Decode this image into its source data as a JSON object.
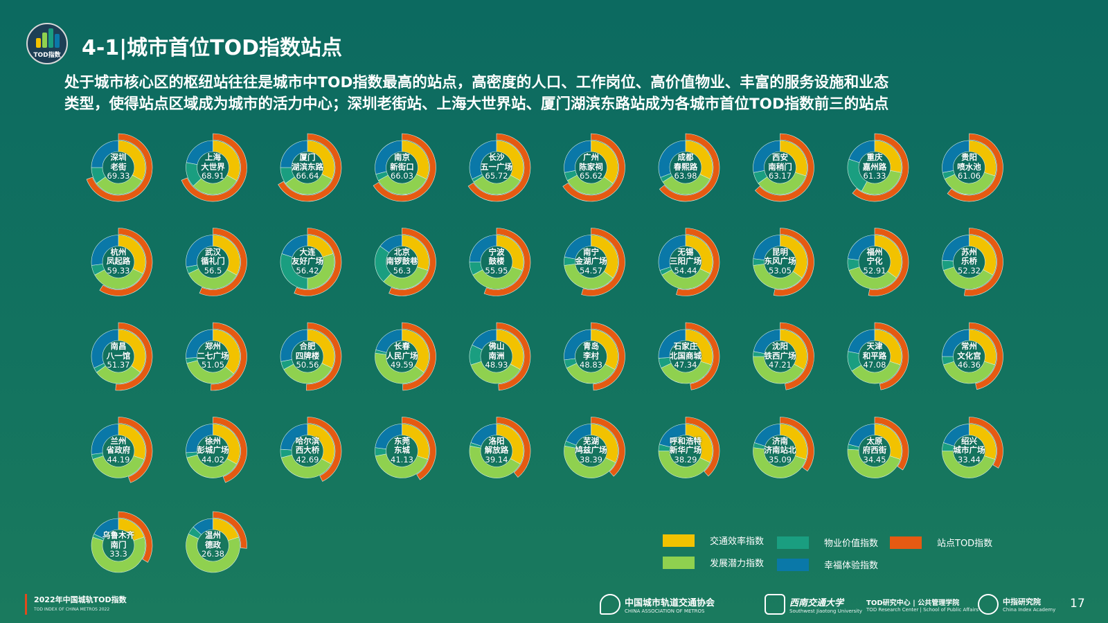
{
  "header": {
    "title": "4-1|城市首位TOD指数站点",
    "logo_text": "TOD指数",
    "subtitle_lines": [
      "处于城市核心区的枢纽站往往是城市中TOD指数最高的站点，高密度的人口、工作岗位、高价值物业、丰富的服务设施和业态",
      "类型，使得站点区域成为城市的活力中心；深圳老街站、上海大世界站、厦门湖滨东路站成为各城市首位TOD指数前三的站点"
    ]
  },
  "colors": {
    "traffic": "#f2c200",
    "development": "#8fd14f",
    "property": "#1a9e80",
    "happiness": "#0a78a8",
    "tod": "#e55a12"
  },
  "legend": {
    "traffic": "交通效率指数",
    "property": "物业价值指数",
    "tod": "站点TOD指数",
    "development": "发展潜力指数",
    "happiness": "幸福体验指数"
  },
  "chart_data": {
    "type": "donut",
    "note": "Outer ring = station TOD index out of 100; inner ring = component shares (traffic, development, property, happiness), estimated",
    "series_order": [
      "traffic",
      "development",
      "property",
      "happiness"
    ],
    "stations": [
      {
        "city": "深圳",
        "station": "老街",
        "tod": 69.33,
        "parts": [
          0.33,
          0.32,
          0.1,
          0.25
        ]
      },
      {
        "city": "上海",
        "station": "大世界",
        "tod": 68.91,
        "parts": [
          0.33,
          0.3,
          0.15,
          0.22
        ]
      },
      {
        "city": "厦门",
        "station": "湖滨东路",
        "tod": 66.64,
        "parts": [
          0.32,
          0.33,
          0.1,
          0.25
        ]
      },
      {
        "city": "南京",
        "station": "新街口",
        "tod": 66.03,
        "parts": [
          0.32,
          0.35,
          0.04,
          0.29
        ]
      },
      {
        "city": "长沙",
        "station": "五一广场",
        "tod": 65.72,
        "parts": [
          0.33,
          0.33,
          0.02,
          0.32
        ]
      },
      {
        "city": "广州",
        "station": "陈家祠",
        "tod": 65.62,
        "parts": [
          0.35,
          0.32,
          0.05,
          0.28
        ]
      },
      {
        "city": "成都",
        "station": "春熙路",
        "tod": 63.98,
        "parts": [
          0.32,
          0.34,
          0.03,
          0.31
        ]
      },
      {
        "city": "西安",
        "station": "南稍门",
        "tod": 63.17,
        "parts": [
          0.3,
          0.35,
          0.07,
          0.28
        ]
      },
      {
        "city": "重庆",
        "station": "嘉州路",
        "tod": 61.33,
        "parts": [
          0.28,
          0.3,
          0.22,
          0.2
        ]
      },
      {
        "city": "贵阳",
        "station": "喷水池",
        "tod": 61.06,
        "parts": [
          0.3,
          0.38,
          0.04,
          0.28
        ]
      },
      {
        "city": "杭州",
        "station": "凤起路",
        "tod": 59.33,
        "parts": [
          0.32,
          0.35,
          0.06,
          0.27
        ]
      },
      {
        "city": "武汉",
        "station": "循礼门",
        "tod": 56.5,
        "parts": [
          0.33,
          0.35,
          0.04,
          0.28
        ]
      },
      {
        "city": "大连",
        "station": "友好广场",
        "tod": 56.42,
        "parts": [
          0.2,
          0.3,
          0.3,
          0.2
        ]
      },
      {
        "city": "北京",
        "station": "南锣鼓巷",
        "tod": 56.3,
        "parts": [
          0.3,
          0.32,
          0.23,
          0.15
        ]
      },
      {
        "city": "宁波",
        "station": "鼓楼",
        "tod": 55.95,
        "parts": [
          0.3,
          0.37,
          0.08,
          0.25
        ]
      },
      {
        "city": "南宁",
        "station": "金湖广场",
        "tod": 54.57,
        "parts": [
          0.35,
          0.38,
          0.05,
          0.22
        ]
      },
      {
        "city": "无锡",
        "station": "三阳广场",
        "tod": 54.44,
        "parts": [
          0.32,
          0.35,
          0.03,
          0.3
        ]
      },
      {
        "city": "昆明",
        "station": "东风广场",
        "tod": 53.05,
        "parts": [
          0.35,
          0.38,
          0.04,
          0.23
        ]
      },
      {
        "city": "福州",
        "station": "宁化",
        "tod": 52.91,
        "parts": [
          0.35,
          0.35,
          0.07,
          0.23
        ]
      },
      {
        "city": "苏州",
        "station": "乐桥",
        "tod": 52.32,
        "parts": [
          0.33,
          0.37,
          0.06,
          0.24
        ]
      },
      {
        "city": "南昌",
        "station": "八一馆",
        "tod": 51.37,
        "parts": [
          0.35,
          0.3,
          0.03,
          0.32
        ]
      },
      {
        "city": "郑州",
        "station": "二七广场",
        "tod": 51.05,
        "parts": [
          0.36,
          0.35,
          0.03,
          0.26
        ]
      },
      {
        "city": "合肥",
        "station": "四牌楼",
        "tod": 50.56,
        "parts": [
          0.32,
          0.35,
          0.05,
          0.28
        ]
      },
      {
        "city": "长春",
        "station": "人民广场",
        "tod": 49.59,
        "parts": [
          0.35,
          0.42,
          0.02,
          0.21
        ]
      },
      {
        "city": "佛山",
        "station": "南洲",
        "tod": 48.93,
        "parts": [
          0.33,
          0.37,
          0.12,
          0.18
        ]
      },
      {
        "city": "青岛",
        "station": "李村",
        "tod": 48.83,
        "parts": [
          0.33,
          0.35,
          0.05,
          0.27
        ]
      },
      {
        "city": "石家庄",
        "station": "北国商城",
        "tod": 47.34,
        "parts": [
          0.3,
          0.38,
          0.06,
          0.26
        ]
      },
      {
        "city": "沈阳",
        "station": "铁西广场",
        "tod": 47.21,
        "parts": [
          0.33,
          0.42,
          0.03,
          0.22
        ]
      },
      {
        "city": "天津",
        "station": "和平路",
        "tod": 47.08,
        "parts": [
          0.3,
          0.36,
          0.12,
          0.22
        ]
      },
      {
        "city": "常州",
        "station": "文化宫",
        "tod": 46.36,
        "parts": [
          0.3,
          0.4,
          0.05,
          0.25
        ]
      },
      {
        "city": "兰州",
        "station": "省政府",
        "tod": 44.19,
        "parts": [
          0.3,
          0.4,
          0.03,
          0.27
        ]
      },
      {
        "city": "徐州",
        "station": "彭城广场",
        "tod": 44.02,
        "parts": [
          0.33,
          0.38,
          0.03,
          0.26
        ]
      },
      {
        "city": "哈尔滨",
        "station": "西大桥",
        "tod": 42.69,
        "parts": [
          0.33,
          0.38,
          0.05,
          0.24
        ]
      },
      {
        "city": "东莞",
        "station": "东城",
        "tod": 41.13,
        "parts": [
          0.3,
          0.42,
          0.05,
          0.23
        ]
      },
      {
        "city": "洛阳",
        "station": "解放路",
        "tod": 39.14,
        "parts": [
          0.33,
          0.45,
          0.02,
          0.2
        ]
      },
      {
        "city": "芜湖",
        "station": "鸠兹广场",
        "tod": 38.39,
        "parts": [
          0.32,
          0.46,
          0.03,
          0.19
        ]
      },
      {
        "city": "呼和浩特",
        "station": "新华广场",
        "tod": 38.29,
        "parts": [
          0.32,
          0.43,
          0.04,
          0.21
        ]
      },
      {
        "city": "济南",
        "station": "济南站北",
        "tod": 35.09,
        "parts": [
          0.3,
          0.47,
          0.03,
          0.2
        ]
      },
      {
        "city": "太原",
        "station": "府西街",
        "tod": 34.45,
        "parts": [
          0.3,
          0.46,
          0.03,
          0.21
        ]
      },
      {
        "city": "绍兴",
        "station": "城市广场",
        "tod": 33.44,
        "parts": [
          0.3,
          0.45,
          0.05,
          0.2
        ]
      },
      {
        "city": "乌鲁木齐",
        "station": "南门",
        "tod": 33.3,
        "parts": [
          0.2,
          0.6,
          0.02,
          0.18
        ]
      },
      {
        "city": "温州",
        "station": "德政",
        "tod": 26.38,
        "parts": [
          0.2,
          0.62,
          0.05,
          0.13
        ]
      }
    ]
  },
  "footer": {
    "report_title": "2022年中国城轨TOD指数",
    "report_subtitle": "TOD INDEX OF CHINA METROS 2022",
    "org1": "中国城市轨道交通协会",
    "org1_en": "CHINA ASSOCIATION OF METROS",
    "org2": "西南交通大学",
    "org2_en": "Southwest Jiaotong University",
    "org2_dept": "TOD研究中心 | 公共管理学院",
    "org2_dept_en": "TOD Research Center | School of Public Affairs",
    "org3": "中指研究院",
    "org3_en": "China Index Academy",
    "page_number": "17"
  }
}
